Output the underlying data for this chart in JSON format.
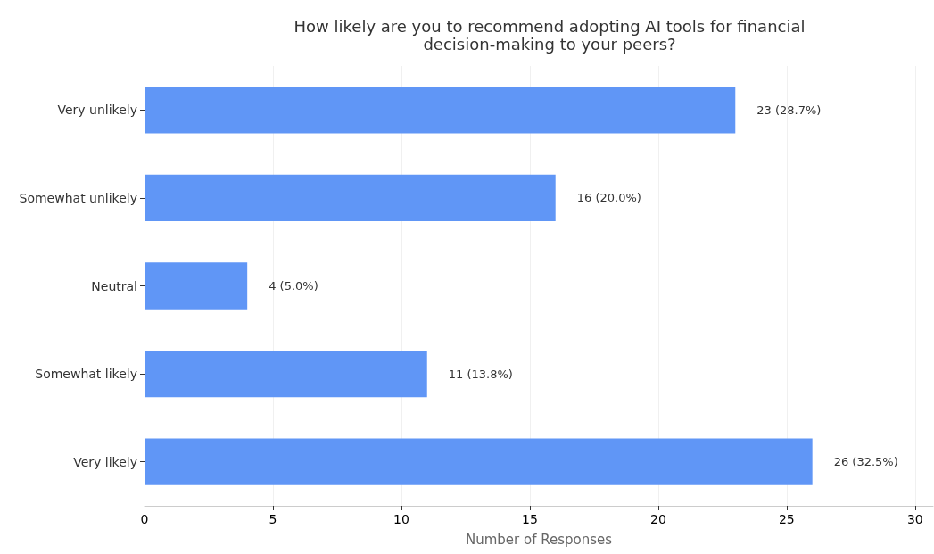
{
  "chart_data": {
    "type": "bar",
    "orientation": "horizontal",
    "title": "How likely are you to recommend adopting AI tools for financial\ndecision-making to your peers?",
    "xlabel": "Number of Responses",
    "categories": [
      "Very unlikely",
      "Somewhat unlikely",
      "Neutral",
      "Somewhat likely",
      "Very likely"
    ],
    "values": [
      23,
      16,
      4,
      11,
      26
    ],
    "value_labels": [
      "23 (28.7%)",
      "16 (20.0%)",
      "4 (5.0%)",
      "11 (13.8%)",
      "26 (32.5%)"
    ],
    "color": "#6096f6",
    "xlim": [
      0,
      30.7
    ],
    "xticks": [
      0,
      5,
      10,
      15,
      20,
      25,
      30
    ],
    "grid": "x"
  }
}
